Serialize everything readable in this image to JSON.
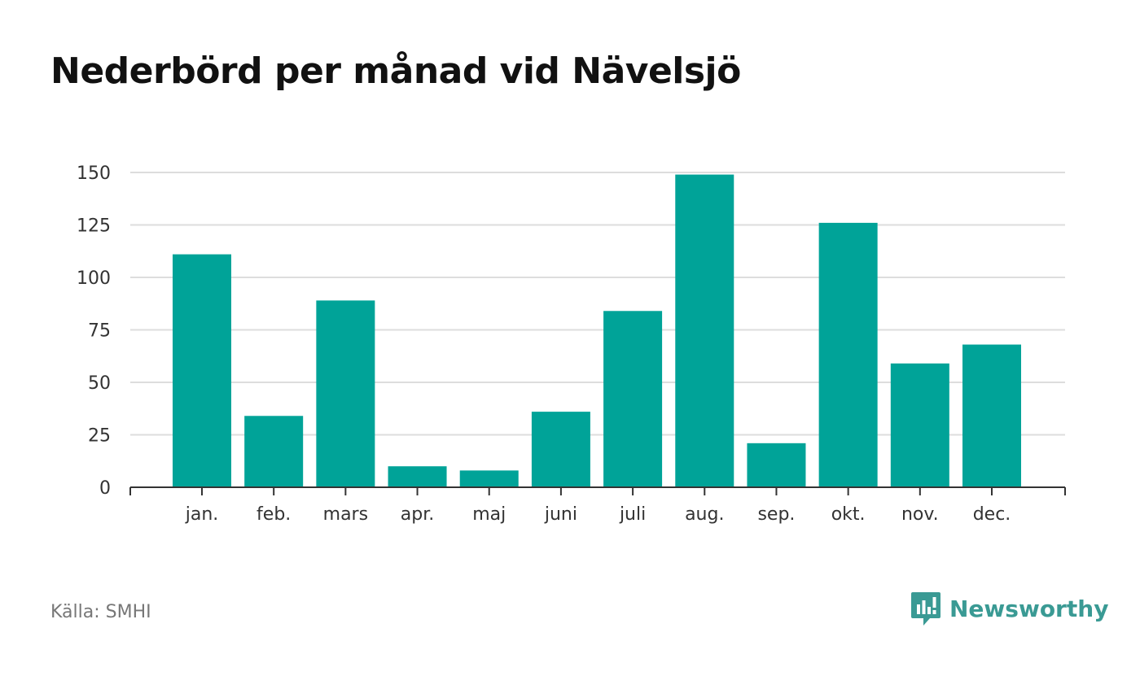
{
  "header": {
    "title": "Nederbörd per månad vid Nävelsjö"
  },
  "footer": {
    "source": "Källa: SMHI",
    "brand_name": "Newsworthy"
  },
  "colors": {
    "bar": "#00a398",
    "brand": "#3a9a94",
    "grid": "#dddddd",
    "axis": "#333333"
  },
  "icons": {
    "brand_logo": "chat-bar-chart-icon"
  },
  "chart_data": {
    "type": "bar",
    "title": "Nederbörd per månad vid Nävelsjö",
    "categories": [
      "jan.",
      "feb.",
      "mars",
      "apr.",
      "maj",
      "juni",
      "juli",
      "aug.",
      "sep.",
      "okt.",
      "nov.",
      "dec."
    ],
    "values": [
      111,
      34,
      89,
      10,
      8,
      36,
      84,
      149,
      21,
      126,
      59,
      68
    ],
    "xlabel": "",
    "ylabel": "",
    "ylim": [
      0,
      150
    ],
    "yticks": [
      0,
      25,
      50,
      75,
      100,
      125,
      150
    ],
    "grid": true,
    "legend": "none"
  }
}
